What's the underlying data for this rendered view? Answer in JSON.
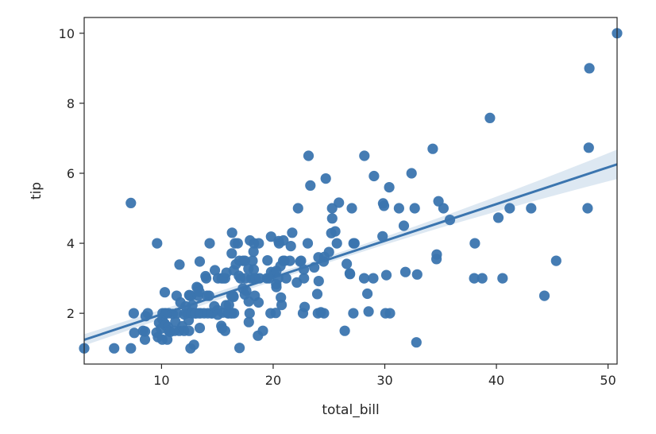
{
  "chart_data": {
    "type": "scatter",
    "title": "",
    "xlabel": "total_bill",
    "ylabel": "tip",
    "xlim": [
      3.07,
      50.81
    ],
    "ylim": [
      0.55,
      10.45
    ],
    "x_ticks": [
      10,
      20,
      30,
      40,
      50
    ],
    "y_ticks": [
      2,
      4,
      6,
      8,
      10
    ],
    "grid": false,
    "legend": "none",
    "colors": {
      "points": "#3b75af",
      "line": "#3b75af",
      "band": "#c6d8ea",
      "axes": "#262626"
    },
    "regression": {
      "slope": 0.105,
      "intercept": 0.92,
      "ci_at_xmin": 0.16,
      "ci_at_mid": 0.09,
      "ci_at_xmax": 0.42
    },
    "points": [
      [
        3.07,
        1.0
      ],
      [
        5.75,
        1.0
      ],
      [
        7.25,
        1.0
      ],
      [
        7.25,
        5.15
      ],
      [
        7.51,
        2.0
      ],
      [
        7.56,
        1.44
      ],
      [
        8.35,
        1.5
      ],
      [
        8.51,
        1.25
      ],
      [
        8.52,
        1.48
      ],
      [
        8.58,
        1.92
      ],
      [
        8.77,
        2.0
      ],
      [
        9.55,
        1.45
      ],
      [
        9.6,
        4.0
      ],
      [
        9.68,
        1.32
      ],
      [
        9.78,
        1.73
      ],
      [
        9.94,
        1.56
      ],
      [
        10.07,
        1.83
      ],
      [
        10.07,
        1.25
      ],
      [
        10.09,
        2.0
      ],
      [
        10.27,
        1.71
      ],
      [
        10.29,
        2.6
      ],
      [
        10.33,
        1.67
      ],
      [
        10.33,
        2.0
      ],
      [
        10.34,
        1.66
      ],
      [
        10.34,
        2.0
      ],
      [
        10.51,
        1.25
      ],
      [
        10.59,
        1.61
      ],
      [
        10.63,
        2.0
      ],
      [
        10.65,
        1.5
      ],
      [
        10.77,
        1.47
      ],
      [
        11.02,
        1.98
      ],
      [
        11.17,
        1.5
      ],
      [
        11.24,
        1.76
      ],
      [
        11.35,
        2.5
      ],
      [
        11.38,
        2.0
      ],
      [
        11.59,
        1.5
      ],
      [
        11.61,
        3.39
      ],
      [
        11.69,
        2.31
      ],
      [
        11.87,
        1.63
      ],
      [
        12.02,
        1.97
      ],
      [
        12.03,
        1.5
      ],
      [
        12.16,
        2.2
      ],
      [
        12.26,
        2.0
      ],
      [
        12.43,
        1.8
      ],
      [
        12.46,
        1.5
      ],
      [
        12.48,
        2.52
      ],
      [
        12.54,
        2.5
      ],
      [
        12.6,
        1.0
      ],
      [
        12.66,
        2.5
      ],
      [
        12.69,
        2.0
      ],
      [
        12.74,
        2.01
      ],
      [
        12.76,
        2.23
      ],
      [
        12.9,
        1.1
      ],
      [
        13.0,
        2.0
      ],
      [
        13.03,
        2.0
      ],
      [
        13.13,
        2.0
      ],
      [
        13.16,
        2.75
      ],
      [
        13.27,
        2.5
      ],
      [
        13.28,
        2.72
      ],
      [
        13.37,
        2.0
      ],
      [
        13.39,
        2.61
      ],
      [
        13.42,
        1.58
      ],
      [
        13.42,
        3.48
      ],
      [
        13.51,
        2.0
      ],
      [
        13.81,
        2.0
      ],
      [
        13.94,
        3.06
      ],
      [
        14.0,
        3.0
      ],
      [
        14.07,
        2.5
      ],
      [
        14.15,
        2.0
      ],
      [
        14.26,
        2.5
      ],
      [
        14.31,
        4.0
      ],
      [
        14.48,
        2.0
      ],
      [
        14.52,
        2.0
      ],
      [
        14.73,
        2.2
      ],
      [
        14.78,
        3.23
      ],
      [
        15.01,
        2.09
      ],
      [
        15.04,
        1.96
      ],
      [
        15.06,
        3.0
      ],
      [
        15.36,
        1.64
      ],
      [
        15.38,
        3.0
      ],
      [
        15.42,
        1.57
      ],
      [
        15.48,
        2.02
      ],
      [
        15.53,
        3.0
      ],
      [
        15.69,
        1.5
      ],
      [
        15.69,
        3.0
      ],
      [
        15.77,
        2.23
      ],
      [
        15.81,
        3.16
      ],
      [
        15.95,
        2.0
      ],
      [
        15.98,
        2.03
      ],
      [
        16.0,
        2.0
      ],
      [
        16.04,
        2.24
      ],
      [
        16.21,
        2.0
      ],
      [
        16.27,
        2.5
      ],
      [
        16.29,
        3.71
      ],
      [
        16.31,
        2.0
      ],
      [
        16.32,
        4.3
      ],
      [
        16.4,
        2.5
      ],
      [
        16.45,
        2.47
      ],
      [
        16.47,
        3.23
      ],
      [
        16.49,
        2.0
      ],
      [
        16.58,
        4.0
      ],
      [
        16.66,
        3.4
      ],
      [
        16.82,
        4.0
      ],
      [
        16.93,
        3.07
      ],
      [
        16.97,
        3.5
      ],
      [
        16.99,
        1.01
      ],
      [
        17.07,
        3.0
      ],
      [
        17.29,
        2.71
      ],
      [
        17.31,
        3.5
      ],
      [
        17.46,
        2.54
      ],
      [
        17.47,
        3.5
      ],
      [
        17.51,
        3.0
      ],
      [
        17.59,
        2.64
      ],
      [
        17.78,
        3.27
      ],
      [
        17.81,
        2.34
      ],
      [
        17.82,
        1.75
      ],
      [
        17.89,
        2.0
      ],
      [
        17.92,
        4.08
      ],
      [
        18.04,
        3.0
      ],
      [
        18.15,
        3.5
      ],
      [
        18.24,
        3.76
      ],
      [
        18.26,
        3.25
      ],
      [
        18.28,
        4.0
      ],
      [
        18.29,
        3.0
      ],
      [
        18.35,
        2.5
      ],
      [
        18.43,
        3.0
      ],
      [
        18.64,
        1.36
      ],
      [
        18.69,
        2.31
      ],
      [
        18.71,
        4.0
      ],
      [
        18.78,
        3.0
      ],
      [
        19.08,
        1.5
      ],
      [
        19.44,
        3.0
      ],
      [
        19.49,
        3.51
      ],
      [
        19.65,
        3.0
      ],
      [
        19.77,
        2.0
      ],
      [
        19.81,
        4.19
      ],
      [
        19.82,
        3.18
      ],
      [
        20.08,
        3.15
      ],
      [
        20.23,
        2.01
      ],
      [
        20.27,
        2.83
      ],
      [
        20.29,
        2.75
      ],
      [
        20.29,
        3.21
      ],
      [
        20.45,
        3.0
      ],
      [
        20.49,
        4.06
      ],
      [
        20.53,
        4.0
      ],
      [
        20.65,
        3.35
      ],
      [
        20.69,
        2.45
      ],
      [
        20.76,
        2.24
      ],
      [
        20.9,
        3.5
      ],
      [
        20.92,
        4.08
      ],
      [
        21.01,
        3.5
      ],
      [
        21.16,
        3.0
      ],
      [
        21.5,
        3.5
      ],
      [
        21.58,
        3.92
      ],
      [
        21.7,
        4.3
      ],
      [
        22.12,
        2.88
      ],
      [
        22.23,
        5.0
      ],
      [
        22.42,
        3.48
      ],
      [
        22.49,
        3.5
      ],
      [
        22.67,
        2.0
      ],
      [
        22.75,
        3.25
      ],
      [
        22.76,
        3.0
      ],
      [
        22.82,
        2.18
      ],
      [
        23.1,
        4.0
      ],
      [
        23.17,
        6.5
      ],
      [
        23.33,
        5.65
      ],
      [
        23.68,
        3.31
      ],
      [
        23.95,
        2.55
      ],
      [
        24.01,
        2.0
      ],
      [
        24.06,
        3.6
      ],
      [
        24.08,
        2.92
      ],
      [
        24.27,
        2.03
      ],
      [
        24.52,
        3.48
      ],
      [
        24.55,
        2.0
      ],
      [
        24.59,
        3.61
      ],
      [
        24.71,
        5.85
      ],
      [
        25.0,
        3.75
      ],
      [
        25.21,
        4.29
      ],
      [
        25.28,
        5.0
      ],
      [
        25.29,
        4.71
      ],
      [
        25.56,
        4.34
      ],
      [
        25.71,
        4.0
      ],
      [
        25.89,
        5.16
      ],
      [
        26.41,
        1.5
      ],
      [
        26.59,
        3.41
      ],
      [
        26.86,
        3.14
      ],
      [
        26.88,
        3.12
      ],
      [
        27.05,
        5.0
      ],
      [
        27.18,
        2.0
      ],
      [
        27.2,
        4.0
      ],
      [
        27.28,
        4.0
      ],
      [
        28.15,
        3.0
      ],
      [
        28.17,
        6.5
      ],
      [
        28.44,
        2.56
      ],
      [
        28.55,
        2.05
      ],
      [
        28.97,
        3.0
      ],
      [
        29.03,
        5.92
      ],
      [
        29.8,
        4.2
      ],
      [
        29.85,
        5.14
      ],
      [
        29.93,
        5.07
      ],
      [
        30.06,
        2.0
      ],
      [
        30.14,
        3.09
      ],
      [
        30.4,
        5.6
      ],
      [
        30.46,
        2.0
      ],
      [
        31.27,
        5.0
      ],
      [
        31.71,
        4.5
      ],
      [
        31.85,
        3.18
      ],
      [
        32.4,
        6.0
      ],
      [
        32.68,
        5.0
      ],
      [
        32.83,
        1.17
      ],
      [
        32.9,
        3.11
      ],
      [
        34.3,
        6.7
      ],
      [
        34.63,
        3.55
      ],
      [
        34.65,
        3.68
      ],
      [
        34.81,
        5.2
      ],
      [
        35.26,
        5.0
      ],
      [
        35.83,
        4.67
      ],
      [
        38.01,
        3.0
      ],
      [
        38.07,
        4.0
      ],
      [
        38.73,
        3.0
      ],
      [
        39.42,
        7.58
      ],
      [
        40.17,
        4.73
      ],
      [
        40.55,
        3.0
      ],
      [
        41.19,
        5.0
      ],
      [
        43.11,
        5.0
      ],
      [
        44.3,
        2.5
      ],
      [
        45.35,
        3.5
      ],
      [
        48.17,
        5.0
      ],
      [
        48.27,
        6.73
      ],
      [
        48.33,
        9.0
      ],
      [
        50.81,
        10.0
      ]
    ]
  }
}
